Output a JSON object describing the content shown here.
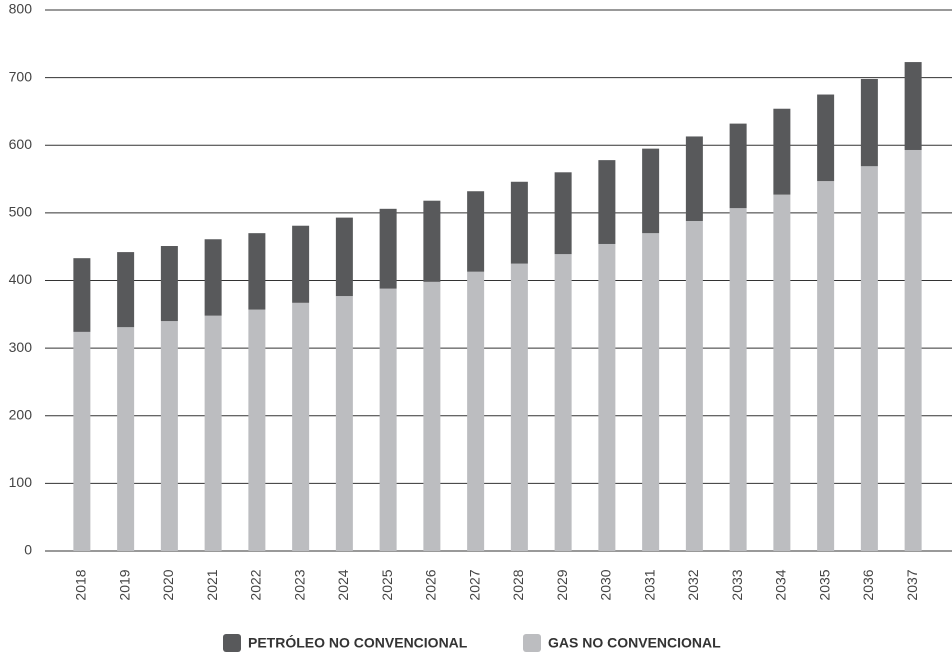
{
  "chart_data": {
    "type": "stacked_bar",
    "categories": [
      "2018",
      "2019",
      "2020",
      "2021",
      "2022",
      "2023",
      "2024",
      "2025",
      "2026",
      "2027",
      "2028",
      "2029",
      "2030",
      "2031",
      "2032",
      "2033",
      "2034",
      "2035",
      "2036",
      "2037"
    ],
    "series": [
      {
        "name": "PETRÓLEO NO CONVENCIONAL",
        "color": "#58595b",
        "values": [
          109,
          111,
          111,
          113,
          113,
          114,
          116,
          118,
          120,
          119,
          121,
          121,
          124,
          125,
          125,
          125,
          127,
          128,
          129,
          130
        ]
      },
      {
        "name": "GAS NO CONVENCIONAL",
        "color": "#bcbdc0",
        "values": [
          324,
          331,
          340,
          348,
          357,
          367,
          377,
          388,
          398,
          413,
          425,
          439,
          454,
          470,
          488,
          507,
          527,
          547,
          569,
          593
        ]
      }
    ],
    "stack_order": [
      1,
      0
    ],
    "ylim": [
      0,
      800
    ],
    "yticks": [
      0,
      100,
      200,
      300,
      400,
      500,
      600,
      700,
      800
    ],
    "grid": true
  }
}
